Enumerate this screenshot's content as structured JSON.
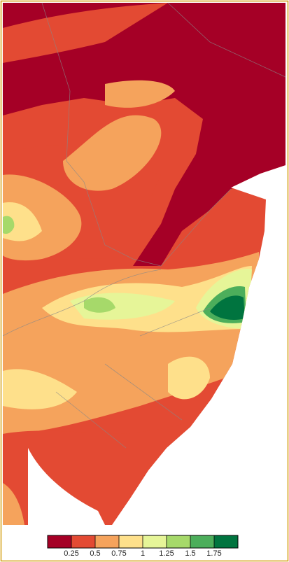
{
  "legend": {
    "colors": [
      "#a50026",
      "#e34a33",
      "#f5a35c",
      "#fee08b",
      "#e6f598",
      "#a6d96a",
      "#4cae5b",
      "#00743f"
    ],
    "ticks": [
      0.25,
      0.5,
      0.75,
      1,
      1.25,
      1.5,
      1.75
    ]
  }
}
